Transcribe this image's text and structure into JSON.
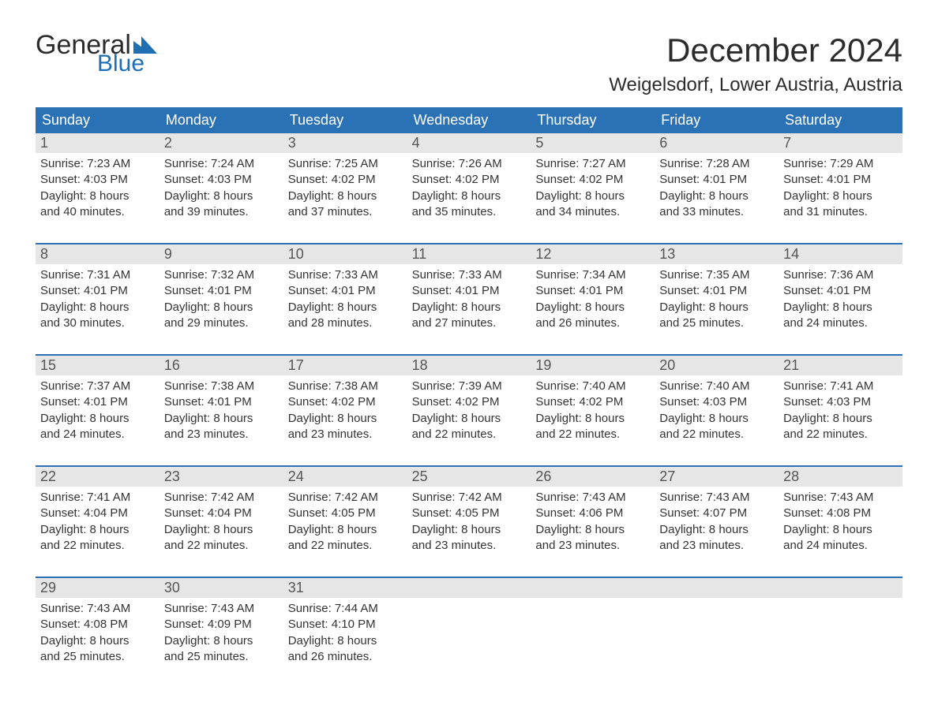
{
  "logo": {
    "general": "General",
    "blue": "Blue",
    "flag_color": "#1f6fb2"
  },
  "title": "December 2024",
  "location": "Weigelsdorf, Lower Austria, Austria",
  "colors": {
    "header_bg": "#2a72b5",
    "header_text": "#ffffff",
    "daynum_bg": "#e6e6e6",
    "daynum_text": "#555555",
    "body_text": "#333333",
    "week_border": "#2a72b5",
    "page_bg": "#ffffff",
    "logo_blue": "#1f6fb2",
    "logo_dark": "#2c2c2c"
  },
  "typography": {
    "title_fontsize": 42,
    "location_fontsize": 24,
    "weekday_fontsize": 18,
    "daynum_fontsize": 18,
    "body_fontsize": 15,
    "logo_general_fontsize": 34,
    "logo_blue_fontsize": 30
  },
  "weekdays": [
    "Sunday",
    "Monday",
    "Tuesday",
    "Wednesday",
    "Thursday",
    "Friday",
    "Saturday"
  ],
  "weeks": [
    [
      {
        "day": "1",
        "sunrise": "Sunrise: 7:23 AM",
        "sunset": "Sunset: 4:03 PM",
        "daylight1": "Daylight: 8 hours",
        "daylight2": "and 40 minutes."
      },
      {
        "day": "2",
        "sunrise": "Sunrise: 7:24 AM",
        "sunset": "Sunset: 4:03 PM",
        "daylight1": "Daylight: 8 hours",
        "daylight2": "and 39 minutes."
      },
      {
        "day": "3",
        "sunrise": "Sunrise: 7:25 AM",
        "sunset": "Sunset: 4:02 PM",
        "daylight1": "Daylight: 8 hours",
        "daylight2": "and 37 minutes."
      },
      {
        "day": "4",
        "sunrise": "Sunrise: 7:26 AM",
        "sunset": "Sunset: 4:02 PM",
        "daylight1": "Daylight: 8 hours",
        "daylight2": "and 35 minutes."
      },
      {
        "day": "5",
        "sunrise": "Sunrise: 7:27 AM",
        "sunset": "Sunset: 4:02 PM",
        "daylight1": "Daylight: 8 hours",
        "daylight2": "and 34 minutes."
      },
      {
        "day": "6",
        "sunrise": "Sunrise: 7:28 AM",
        "sunset": "Sunset: 4:01 PM",
        "daylight1": "Daylight: 8 hours",
        "daylight2": "and 33 minutes."
      },
      {
        "day": "7",
        "sunrise": "Sunrise: 7:29 AM",
        "sunset": "Sunset: 4:01 PM",
        "daylight1": "Daylight: 8 hours",
        "daylight2": "and 31 minutes."
      }
    ],
    [
      {
        "day": "8",
        "sunrise": "Sunrise: 7:31 AM",
        "sunset": "Sunset: 4:01 PM",
        "daylight1": "Daylight: 8 hours",
        "daylight2": "and 30 minutes."
      },
      {
        "day": "9",
        "sunrise": "Sunrise: 7:32 AM",
        "sunset": "Sunset: 4:01 PM",
        "daylight1": "Daylight: 8 hours",
        "daylight2": "and 29 minutes."
      },
      {
        "day": "10",
        "sunrise": "Sunrise: 7:33 AM",
        "sunset": "Sunset: 4:01 PM",
        "daylight1": "Daylight: 8 hours",
        "daylight2": "and 28 minutes."
      },
      {
        "day": "11",
        "sunrise": "Sunrise: 7:33 AM",
        "sunset": "Sunset: 4:01 PM",
        "daylight1": "Daylight: 8 hours",
        "daylight2": "and 27 minutes."
      },
      {
        "day": "12",
        "sunrise": "Sunrise: 7:34 AM",
        "sunset": "Sunset: 4:01 PM",
        "daylight1": "Daylight: 8 hours",
        "daylight2": "and 26 minutes."
      },
      {
        "day": "13",
        "sunrise": "Sunrise: 7:35 AM",
        "sunset": "Sunset: 4:01 PM",
        "daylight1": "Daylight: 8 hours",
        "daylight2": "and 25 minutes."
      },
      {
        "day": "14",
        "sunrise": "Sunrise: 7:36 AM",
        "sunset": "Sunset: 4:01 PM",
        "daylight1": "Daylight: 8 hours",
        "daylight2": "and 24 minutes."
      }
    ],
    [
      {
        "day": "15",
        "sunrise": "Sunrise: 7:37 AM",
        "sunset": "Sunset: 4:01 PM",
        "daylight1": "Daylight: 8 hours",
        "daylight2": "and 24 minutes."
      },
      {
        "day": "16",
        "sunrise": "Sunrise: 7:38 AM",
        "sunset": "Sunset: 4:01 PM",
        "daylight1": "Daylight: 8 hours",
        "daylight2": "and 23 minutes."
      },
      {
        "day": "17",
        "sunrise": "Sunrise: 7:38 AM",
        "sunset": "Sunset: 4:02 PM",
        "daylight1": "Daylight: 8 hours",
        "daylight2": "and 23 minutes."
      },
      {
        "day": "18",
        "sunrise": "Sunrise: 7:39 AM",
        "sunset": "Sunset: 4:02 PM",
        "daylight1": "Daylight: 8 hours",
        "daylight2": "and 22 minutes."
      },
      {
        "day": "19",
        "sunrise": "Sunrise: 7:40 AM",
        "sunset": "Sunset: 4:02 PM",
        "daylight1": "Daylight: 8 hours",
        "daylight2": "and 22 minutes."
      },
      {
        "day": "20",
        "sunrise": "Sunrise: 7:40 AM",
        "sunset": "Sunset: 4:03 PM",
        "daylight1": "Daylight: 8 hours",
        "daylight2": "and 22 minutes."
      },
      {
        "day": "21",
        "sunrise": "Sunrise: 7:41 AM",
        "sunset": "Sunset: 4:03 PM",
        "daylight1": "Daylight: 8 hours",
        "daylight2": "and 22 minutes."
      }
    ],
    [
      {
        "day": "22",
        "sunrise": "Sunrise: 7:41 AM",
        "sunset": "Sunset: 4:04 PM",
        "daylight1": "Daylight: 8 hours",
        "daylight2": "and 22 minutes."
      },
      {
        "day": "23",
        "sunrise": "Sunrise: 7:42 AM",
        "sunset": "Sunset: 4:04 PM",
        "daylight1": "Daylight: 8 hours",
        "daylight2": "and 22 minutes."
      },
      {
        "day": "24",
        "sunrise": "Sunrise: 7:42 AM",
        "sunset": "Sunset: 4:05 PM",
        "daylight1": "Daylight: 8 hours",
        "daylight2": "and 22 minutes."
      },
      {
        "day": "25",
        "sunrise": "Sunrise: 7:42 AM",
        "sunset": "Sunset: 4:05 PM",
        "daylight1": "Daylight: 8 hours",
        "daylight2": "and 23 minutes."
      },
      {
        "day": "26",
        "sunrise": "Sunrise: 7:43 AM",
        "sunset": "Sunset: 4:06 PM",
        "daylight1": "Daylight: 8 hours",
        "daylight2": "and 23 minutes."
      },
      {
        "day": "27",
        "sunrise": "Sunrise: 7:43 AM",
        "sunset": "Sunset: 4:07 PM",
        "daylight1": "Daylight: 8 hours",
        "daylight2": "and 23 minutes."
      },
      {
        "day": "28",
        "sunrise": "Sunrise: 7:43 AM",
        "sunset": "Sunset: 4:08 PM",
        "daylight1": "Daylight: 8 hours",
        "daylight2": "and 24 minutes."
      }
    ],
    [
      {
        "day": "29",
        "sunrise": "Sunrise: 7:43 AM",
        "sunset": "Sunset: 4:08 PM",
        "daylight1": "Daylight: 8 hours",
        "daylight2": "and 25 minutes."
      },
      {
        "day": "30",
        "sunrise": "Sunrise: 7:43 AM",
        "sunset": "Sunset: 4:09 PM",
        "daylight1": "Daylight: 8 hours",
        "daylight2": "and 25 minutes."
      },
      {
        "day": "31",
        "sunrise": "Sunrise: 7:44 AM",
        "sunset": "Sunset: 4:10 PM",
        "daylight1": "Daylight: 8 hours",
        "daylight2": "and 26 minutes."
      },
      null,
      null,
      null,
      null
    ]
  ]
}
